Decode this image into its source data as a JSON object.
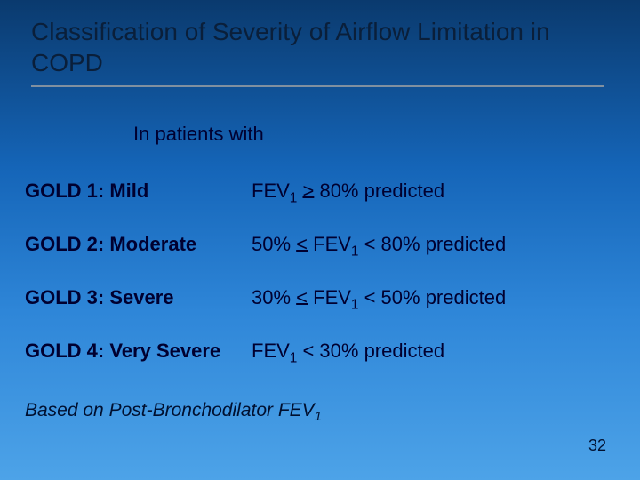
{
  "background": {
    "gradient_stops": [
      "#0a3a6e",
      "#1565b8",
      "#2e86d8",
      "#4da3e8"
    ]
  },
  "title": {
    "text": "Classification of Severity of Airflow Limitation in COPD",
    "color": "#0a1f3a",
    "fontsize": 28,
    "underline_color": "#8090a0"
  },
  "subtitle": {
    "text": "In patients with",
    "color": "#000030",
    "fontsize": 22
  },
  "rows": [
    {
      "label": "GOLD 1: Mild",
      "criterion_html": "FEV<sub>1</sub> <span class='gte'>></span> 80% predicted"
    },
    {
      "label": "GOLD 2: Moderate",
      "criterion_html": "50% <span class='lte'><</span> FEV<sub>1</sub> < 80% predicted"
    },
    {
      "label": "GOLD 3: Severe",
      "criterion_html": "30% <span class='lte'><</span> FEV<sub>1</sub> < 50% predicted"
    },
    {
      "label": "GOLD 4: Very Severe",
      "criterion_html": "FEV<sub>1</sub> < 30% predicted"
    }
  ],
  "text_color": "#000030",
  "row_fontsize": 22,
  "footnote": {
    "text_html": "Based on Post-Bronchodilator FEV<sub>1</sub>",
    "fontsize": 21,
    "italic": true
  },
  "page_number": "32"
}
